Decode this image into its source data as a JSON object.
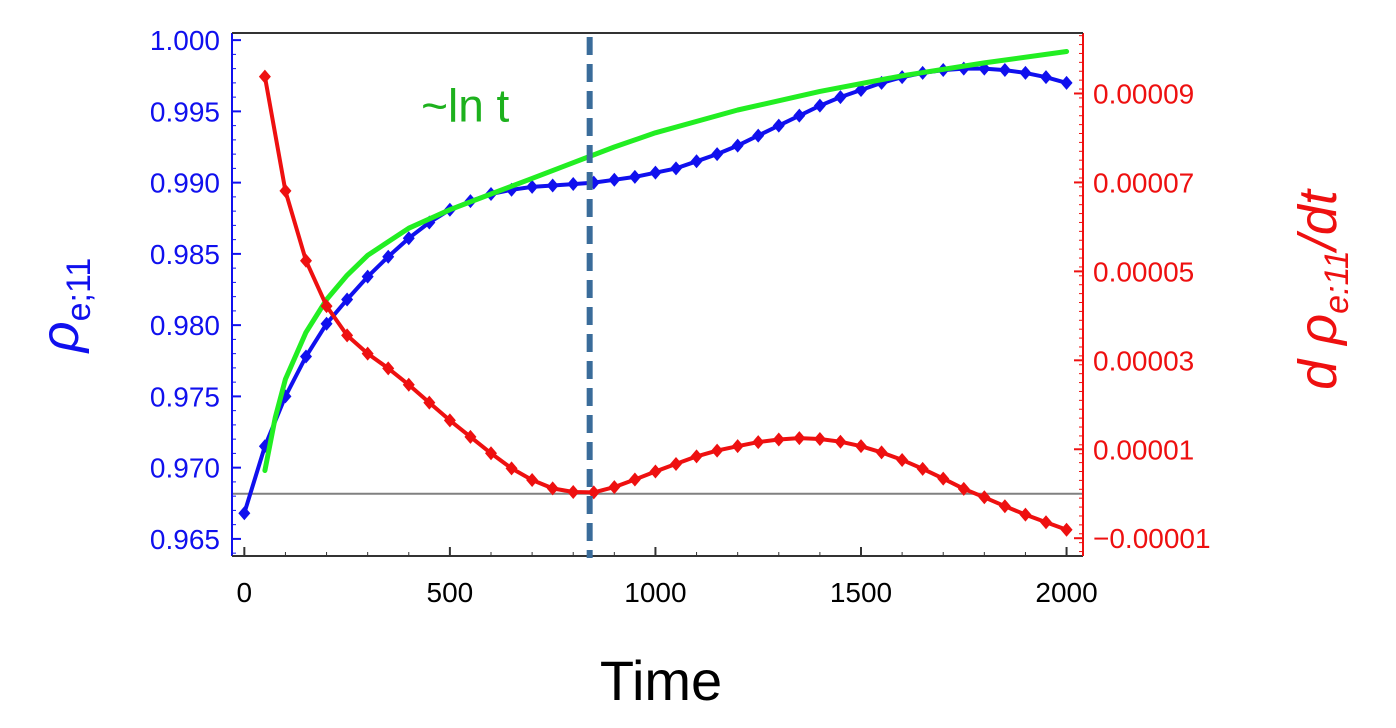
{
  "chart_data": {
    "type": "line",
    "xlabel": "Time",
    "ylabel_left": {
      "symbol": "ρ",
      "subscript": "e;11"
    },
    "ylabel_right": {
      "prefix": "d ",
      "symbol": "ρ",
      "subscript": "e:11",
      "suffix": "/dt"
    },
    "xlim": [
      -30,
      2040
    ],
    "ylim_left": [
      0.9638,
      1.0005
    ],
    "ylim_right": [
      -1.4e-05,
      0.0001036
    ],
    "x_ticks": [
      0,
      500,
      1000,
      1500,
      2000
    ],
    "x_tick_labels": [
      "0",
      "500",
      "1000",
      "1500",
      "2000"
    ],
    "left_ticks": [
      0.965,
      0.97,
      0.975,
      0.98,
      0.985,
      0.99,
      0.995,
      1.0
    ],
    "left_tick_labels": [
      "0.965",
      "0.970",
      "0.975",
      "0.980",
      "0.985",
      "0.990",
      "0.995",
      "1.000"
    ],
    "right_ticks": [
      -1e-05,
      1e-05,
      3e-05,
      5e-05,
      7e-05,
      9e-05
    ],
    "right_tick_labels": [
      "−0.00001",
      "0.00001",
      "0.00003",
      "0.00005",
      "0.00007",
      "0.00009"
    ],
    "reference_lines": [
      {
        "orientation": "vertical",
        "x": 840,
        "style": "dashed",
        "color": "#3a6c9a"
      },
      {
        "orientation": "horizontal",
        "axis": "right",
        "y": 0.0,
        "color": "#808080"
      }
    ],
    "annotations": [
      {
        "text": "~ln t",
        "x": 430,
        "y_left": 0.9943,
        "color": "#1db11d"
      }
    ],
    "grid": false,
    "series": [
      {
        "axis": "left",
        "color": "#1010ee",
        "marker": "diamond",
        "x": [
          0,
          50,
          100,
          150,
          200,
          250,
          300,
          350,
          400,
          450,
          500,
          550,
          600,
          650,
          700,
          750,
          800,
          850,
          900,
          950,
          1000,
          1050,
          1100,
          1150,
          1200,
          1250,
          1300,
          1350,
          1400,
          1450,
          1500,
          1550,
          1600,
          1650,
          1700,
          1750,
          1800,
          1850,
          1900,
          1950,
          2000
        ],
        "y": [
          0.9668,
          0.9715,
          0.975,
          0.9778,
          0.9801,
          0.9818,
          0.9834,
          0.9848,
          0.9861,
          0.9872,
          0.9881,
          0.9887,
          0.9892,
          0.9895,
          0.9897,
          0.9898,
          0.9899,
          0.99,
          0.9902,
          0.9904,
          0.9907,
          0.991,
          0.9915,
          0.992,
          0.9926,
          0.9933,
          0.994,
          0.9947,
          0.9954,
          0.996,
          0.9965,
          0.997,
          0.9974,
          0.9977,
          0.9979,
          0.998,
          0.998,
          0.9979,
          0.9977,
          0.9974,
          0.997
        ]
      },
      {
        "axis": "left",
        "color": "#22ee22",
        "style": "smooth-fit",
        "x": [
          50,
          75,
          100,
          150,
          200,
          250,
          300,
          400,
          500,
          600,
          700,
          800,
          900,
          1000,
          1200,
          1400,
          1600,
          1800,
          2000
        ],
        "y": [
          0.9698,
          0.9735,
          0.9762,
          0.9795,
          0.9818,
          0.9835,
          0.9849,
          0.9868,
          0.9881,
          0.9892,
          0.9903,
          0.9914,
          0.9925,
          0.9935,
          0.9951,
          0.9964,
          0.9975,
          0.9984,
          0.9992
        ]
      },
      {
        "axis": "right",
        "color": "#ee1010",
        "marker": "diamond",
        "x": [
          50,
          100,
          150,
          200,
          250,
          300,
          350,
          400,
          450,
          500,
          550,
          600,
          650,
          700,
          750,
          800,
          850,
          900,
          950,
          1000,
          1050,
          1100,
          1150,
          1200,
          1250,
          1300,
          1350,
          1400,
          1450,
          1500,
          1550,
          1600,
          1650,
          1700,
          1750,
          1800,
          1850,
          1900,
          1950,
          2000
        ],
        "y": [
          9.38e-05,
          6.81e-05,
          5.24e-05,
          4.22e-05,
          3.56e-05,
          3.15e-05,
          2.82e-05,
          2.45e-05,
          2.05e-05,
          1.65e-05,
          1.28e-05,
          9.1e-06,
          5.7e-06,
          3.1e-06,
          1.2e-06,
          4e-07,
          3e-07,
          1.5e-06,
          3.2e-06,
          5e-06,
          6.7e-06,
          8.4e-06,
          9.7e-06,
          1.07e-05,
          1.16e-05,
          1.22e-05,
          1.25e-05,
          1.23e-05,
          1.17e-05,
          1.07e-05,
          9.3e-06,
          7.6e-06,
          5.6e-06,
          3.4e-06,
          1.1e-06,
          -8e-07,
          -2.8e-06,
          -4.7e-06,
          -6.4e-06,
          -8.1e-06
        ]
      }
    ]
  }
}
